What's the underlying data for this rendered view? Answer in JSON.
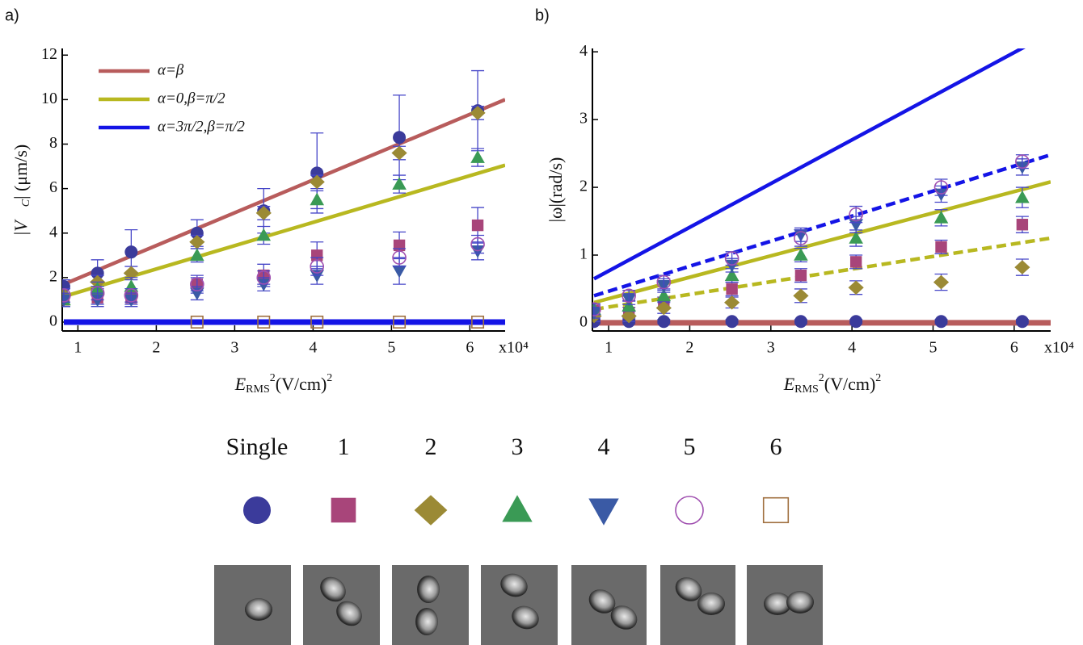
{
  "panel_labels": [
    "a)",
    "b)"
  ],
  "chart_data": [
    {
      "type": "scatter",
      "xlabel_parts": [
        "E",
        "RMS",
        "2",
        "(V/cm)",
        "2"
      ],
      "ylabel_parts": [
        "|",
        "V⃗",
        "C",
        "| (μm/s)"
      ],
      "xlim": [
        0.8,
        6.45
      ],
      "ylim": [
        -0.4,
        12.3
      ],
      "xticks": [
        1,
        2,
        3,
        4,
        5,
        6
      ],
      "yticks": [
        0,
        2,
        4,
        6,
        8,
        10,
        12
      ],
      "x_multiplier": "x10⁴",
      "errorbar_color": "#4646c8",
      "x": [
        0.82,
        1.25,
        1.68,
        2.52,
        3.37,
        4.05,
        5.1,
        6.1
      ],
      "series": [
        {
          "name": "Single",
          "shape": "circle",
          "color": "#3b3b9b",
          "values": [
            1.6,
            2.2,
            3.15,
            4.0,
            5.0,
            6.7,
            8.3,
            9.5
          ],
          "errors": [
            0.3,
            0.6,
            1.0,
            0.6,
            1.0,
            1.8,
            1.9,
            1.8
          ]
        },
        {
          "name": "1",
          "shape": "square",
          "color": "#a8457a",
          "values": [
            1.0,
            1.1,
            1.1,
            1.7,
            2.1,
            3.0,
            3.45,
            4.35
          ],
          "errors": [
            0.3,
            0.3,
            0.3,
            0.4,
            0.5,
            0.6,
            0.6,
            0.8
          ]
        },
        {
          "name": "2",
          "shape": "diamond",
          "color": "#9b8a35",
          "values": [
            1.2,
            1.8,
            2.2,
            3.6,
            4.9,
            6.3,
            7.6,
            9.4
          ],
          "errors": [
            0.3,
            0.3,
            0.3,
            0.3,
            0.3,
            0.3,
            0.3,
            0.3
          ]
        },
        {
          "name": "3",
          "shape": "triangle-up",
          "color": "#3a9a55",
          "values": [
            1.0,
            1.5,
            1.6,
            3.0,
            3.9,
            5.5,
            6.2,
            7.4
          ],
          "errors": [
            0.3,
            0.3,
            0.4,
            0.3,
            0.4,
            0.4,
            0.4,
            0.4
          ]
        },
        {
          "name": "4",
          "shape": "triangle-down",
          "color": "#3a5aa5",
          "values": [
            1.0,
            1.0,
            1.0,
            1.3,
            1.7,
            2.1,
            2.3,
            3.2
          ],
          "errors": [
            0.3,
            0.3,
            0.3,
            0.3,
            0.3,
            0.4,
            0.6,
            0.4
          ]
        },
        {
          "name": "5",
          "shape": "circle-open",
          "color": "#a050b0",
          "values": [
            1.2,
            1.3,
            1.2,
            1.7,
            2.0,
            2.5,
            2.9,
            3.5
          ],
          "errors": [
            0.3,
            0.3,
            0.3,
            0.3,
            0.3,
            0.4,
            0.4,
            0.4
          ]
        },
        {
          "name": "6",
          "shape": "square-open",
          "color": "#a07040",
          "values": [
            null,
            null,
            null,
            0,
            0,
            0,
            0,
            0
          ],
          "errors": [
            null,
            null,
            null,
            0,
            0,
            0,
            0,
            0
          ]
        }
      ],
      "lines": [
        {
          "name": "α=β",
          "color": "#b85c5c",
          "dash": false,
          "x": [
            0.82,
            6.45
          ],
          "values": [
            1.7,
            10.0
          ]
        },
        {
          "name": "α=0,β=π/2",
          "color": "#b8b820",
          "dash": false,
          "x": [
            0.82,
            6.45
          ],
          "values": [
            1.15,
            7.05
          ]
        },
        {
          "name": "α=3π/2,β=π/2",
          "color": "#1414e6",
          "dash": false,
          "x": [
            0.82,
            6.45
          ],
          "values": [
            0,
            0
          ]
        }
      ]
    },
    {
      "type": "scatter",
      "xlabel_parts": [
        "E",
        "RMS",
        "2",
        "(V/cm)",
        "2"
      ],
      "ylabel_parts": [
        "|ω|(rad/s)"
      ],
      "xlim": [
        0.8,
        6.45
      ],
      "ylim": [
        -0.12,
        4.05
      ],
      "xticks": [
        1,
        2,
        3,
        4,
        5,
        6
      ],
      "yticks": [
        0,
        1,
        2,
        3,
        4
      ],
      "x_multiplier": "x10⁴",
      "errorbar_color": "#4646c8",
      "x": [
        0.82,
        1.25,
        1.68,
        2.52,
        3.37,
        4.05,
        5.1,
        6.1
      ],
      "series": [
        {
          "shape": "circle",
          "color": "#3b3b9b",
          "values": [
            0.02,
            0.02,
            0.02,
            0.02,
            0.02,
            0.02,
            0.02,
            0.02
          ],
          "errors": [
            0.03,
            0.03,
            0.03,
            0.03,
            0.03,
            0.03,
            0.03,
            0.03
          ]
        },
        {
          "shape": "square",
          "color": "#a8457a",
          "values": [
            0.18,
            0.15,
            0.3,
            0.5,
            0.7,
            0.9,
            1.12,
            1.45
          ],
          "errors": [
            0.08,
            0.08,
            0.08,
            0.1,
            0.1,
            0.1,
            0.1,
            0.12
          ]
        },
        {
          "shape": "diamond",
          "color": "#9b8a35",
          "values": [
            0.1,
            0.1,
            0.22,
            0.3,
            0.4,
            0.52,
            0.6,
            0.82
          ],
          "errors": [
            0.08,
            0.08,
            0.08,
            0.08,
            0.1,
            0.1,
            0.12,
            0.12
          ]
        },
        {
          "shape": "triangle-up",
          "color": "#3a9a55",
          "values": [
            0.2,
            0.25,
            0.4,
            0.7,
            1.0,
            1.25,
            1.55,
            1.85
          ],
          "errors": [
            0.08,
            0.08,
            0.08,
            0.1,
            0.1,
            0.12,
            0.12,
            0.15
          ]
        },
        {
          "shape": "triangle-down",
          "color": "#3a5aa5",
          "values": [
            0.15,
            0.35,
            0.55,
            0.85,
            1.3,
            1.45,
            1.9,
            2.3
          ],
          "errors": [
            0.08,
            0.08,
            0.1,
            0.1,
            0.1,
            0.12,
            0.12,
            0.12
          ]
        },
        {
          "shape": "circle-open",
          "color": "#a050b0",
          "values": [
            0.2,
            0.4,
            0.6,
            0.95,
            1.25,
            1.6,
            2.0,
            2.38
          ],
          "errors": [
            0.08,
            0.08,
            0.1,
            0.1,
            0.12,
            0.12,
            0.12,
            0.1
          ]
        }
      ],
      "lines": [
        {
          "color": "#1414e6",
          "dash": false,
          "x": [
            0.82,
            6.45
          ],
          "values": [
            0.65,
            4.28
          ]
        },
        {
          "color": "#1414e6",
          "dash": true,
          "x": [
            0.82,
            6.45
          ],
          "values": [
            0.4,
            2.48
          ]
        },
        {
          "color": "#b8b820",
          "dash": false,
          "x": [
            0.82,
            6.45
          ],
          "values": [
            0.3,
            2.08
          ]
        },
        {
          "color": "#b8b820",
          "dash": true,
          "x": [
            0.82,
            6.45
          ],
          "values": [
            0.2,
            1.25
          ]
        },
        {
          "color": "#b85c5c",
          "dash": false,
          "x": [
            0.82,
            6.45
          ],
          "values": [
            0,
            0
          ]
        }
      ]
    }
  ]
}
